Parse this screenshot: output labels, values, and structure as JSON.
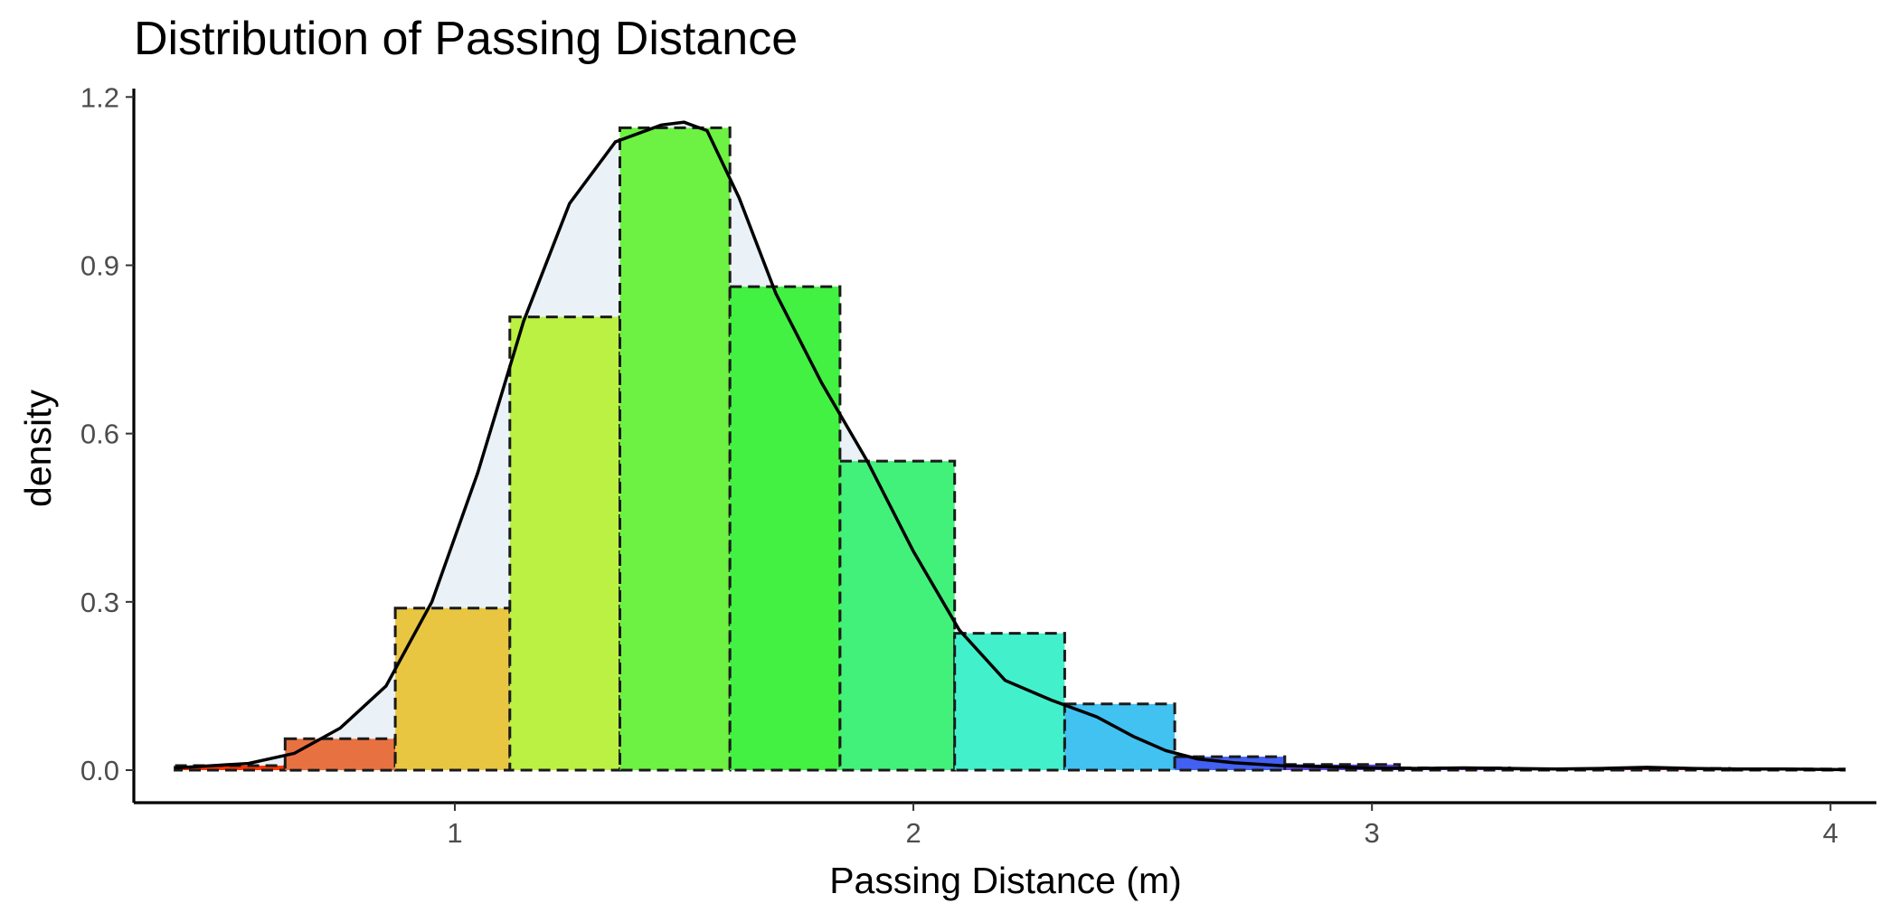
{
  "chart_data": {
    "type": "bar",
    "title": "Distribution of Passing Distance",
    "xlabel": "Passing Distance (m)",
    "ylabel": "density",
    "xlim": [
      0.3,
      4.1
    ],
    "ylim": [
      -0.058,
      1.215
    ],
    "x_ticks": [
      1,
      2,
      3,
      4
    ],
    "x_tick_labels": [
      "1",
      "2",
      "3",
      "4"
    ],
    "y_ticks": [
      0.0,
      0.3,
      0.6,
      0.9,
      1.2
    ],
    "y_tick_labels": [
      "0.0",
      "0.3",
      "0.6",
      "0.9",
      "1.2"
    ],
    "grid": false,
    "bin_width": 0.243,
    "bins": [
      {
        "x0": 0.39,
        "x1": 0.63,
        "value": 0.008,
        "color": "#FF3300"
      },
      {
        "x0": 0.63,
        "x1": 0.87,
        "value": 0.056,
        "color": "#E87142"
      },
      {
        "x0": 0.87,
        "x1": 1.12,
        "value": 0.289,
        "color": "#E8C642"
      },
      {
        "x0": 1.12,
        "x1": 1.36,
        "value": 0.808,
        "color": "#BBF142"
      },
      {
        "x0": 1.36,
        "x1": 1.6,
        "value": 1.145,
        "color": "#6DF142"
      },
      {
        "x0": 1.6,
        "x1": 1.84,
        "value": 0.862,
        "color": "#42F142"
      },
      {
        "x0": 1.84,
        "x1": 2.09,
        "value": 0.551,
        "color": "#42F17A"
      },
      {
        "x0": 2.09,
        "x1": 2.33,
        "value": 0.244,
        "color": "#42F1CB"
      },
      {
        "x0": 2.33,
        "x1": 2.57,
        "value": 0.118,
        "color": "#42C2F1"
      },
      {
        "x0": 2.57,
        "x1": 2.81,
        "value": 0.024,
        "color": "#4260F1"
      },
      {
        "x0": 2.81,
        "x1": 3.06,
        "value": 0.01,
        "color": "#6642F1"
      },
      {
        "x0": 3.06,
        "x1": 3.3,
        "value": 0.004,
        "color": "#9E42F1"
      },
      {
        "x0": 3.3,
        "x1": 3.54,
        "value": 0.002,
        "color": "#D242F1"
      },
      {
        "x0": 3.54,
        "x1": 3.78,
        "value": 0.003,
        "color": "#F142C2"
      },
      {
        "x0": 3.78,
        "x1": 4.03,
        "value": 0.002,
        "color": "#F14275"
      }
    ],
    "density_curve": {
      "x": [
        0.39,
        0.45,
        0.55,
        0.65,
        0.75,
        0.85,
        0.95,
        1.05,
        1.15,
        1.25,
        1.35,
        1.45,
        1.5,
        1.55,
        1.62,
        1.7,
        1.8,
        1.9,
        2.0,
        2.1,
        2.2,
        2.3,
        2.4,
        2.48,
        2.55,
        2.62,
        2.7,
        2.8,
        2.9,
        3.0,
        3.1,
        3.2,
        3.3,
        3.4,
        3.5,
        3.6,
        3.7,
        3.8,
        3.9,
        4.03
      ],
      "y": [
        0.004,
        0.007,
        0.012,
        0.03,
        0.075,
        0.15,
        0.3,
        0.53,
        0.8,
        1.01,
        1.12,
        1.15,
        1.155,
        1.14,
        1.02,
        0.85,
        0.69,
        0.55,
        0.39,
        0.25,
        0.16,
        0.125,
        0.095,
        0.06,
        0.035,
        0.02,
        0.013,
        0.008,
        0.006,
        0.004,
        0.003,
        0.004,
        0.003,
        0.002,
        0.003,
        0.005,
        0.003,
        0.002,
        0.002,
        0.001
      ]
    }
  }
}
